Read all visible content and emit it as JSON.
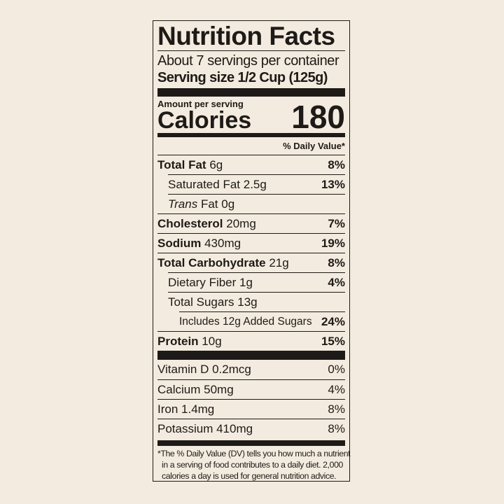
{
  "label": {
    "title": "Nutrition Facts",
    "servings": "About 7 servings per container",
    "serving_size": "Serving size 1/2 Cup (125g)",
    "amount_per_serving": "Amount per serving",
    "calories_label": "Calories",
    "calories_value": "180",
    "daily_value_header": "% Daily Value*",
    "nutrients": [
      {
        "name": "Total Fat",
        "amount": "6g",
        "dv": "8%"
      },
      {
        "name": "Saturated Fat",
        "amount": "2.5g",
        "dv": "13%"
      },
      {
        "name": "Trans",
        "name_suffix": "Fat",
        "amount": "0g",
        "dv": ""
      },
      {
        "name": "Cholesterol",
        "amount": "20mg",
        "dv": "7%"
      },
      {
        "name": "Sodium",
        "amount": "430mg",
        "dv": "19%"
      },
      {
        "name": "Total Carbohydrate",
        "amount": "21g",
        "dv": "8%"
      },
      {
        "name": "Dietary Fiber",
        "amount": "1g",
        "dv": "4%"
      },
      {
        "name": "Total Sugars",
        "amount": "13g",
        "dv": ""
      },
      {
        "name": "Includes 12g Added Sugars",
        "amount": "",
        "dv": "24%"
      },
      {
        "name": "Protein",
        "amount": "10g",
        "dv": "15%"
      }
    ],
    "vitamins": [
      {
        "name": "Vitamin D 0.2mcg",
        "dv": "0%"
      },
      {
        "name": "Calcium 50mg",
        "dv": "4%"
      },
      {
        "name": "Iron 1.4mg",
        "dv": "8%"
      },
      {
        "name": "Potassium 410mg",
        "dv": "8%"
      }
    ],
    "footnote": [
      "*The % Daily Value (DV) tells you how much a nutrient",
      "in a serving of food contributes to a daily diet. 2,000",
      "calories a day is used for general nutrition advice."
    ]
  },
  "colors": {
    "background": "#f3ebdf",
    "ink": "#1e1a17"
  }
}
